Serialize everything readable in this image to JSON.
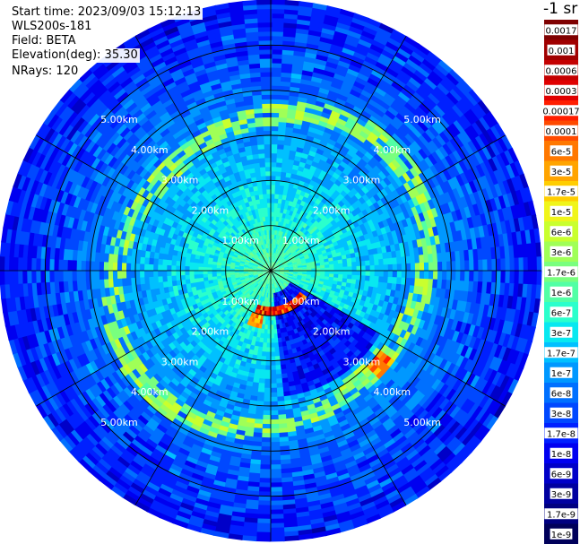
{
  "header": {
    "start_time": "Start time: 2023/09/03 15:12:13",
    "instrument": "WLS200s-181",
    "field": "Field: BETA",
    "elevation": "Elevation(deg): 35.30",
    "nrays": "NRays: 120"
  },
  "colorbar": {
    "unit_label": "-1 sr",
    "ticks": [
      "0.0017",
      "0.001",
      "0.0006",
      "0.0003",
      "0.00017",
      "0.0001",
      "6e-5",
      "3e-5",
      "1.7e-5",
      "1e-5",
      "6e-6",
      "3e-6",
      "1.7e-6",
      "1e-6",
      "6e-7",
      "3e-7",
      "1.7e-7",
      "1e-7",
      "6e-8",
      "3e-8",
      "1.7e-8",
      "1e-8",
      "6e-9",
      "3e-9",
      "1.7e-9",
      "1e-9"
    ],
    "colors": [
      "#7f0000",
      "#a00000",
      "#c40000",
      "#e00000",
      "#ff1e00",
      "#ff4a00",
      "#ff7800",
      "#ffa400",
      "#ffcd00",
      "#f0f51a",
      "#c9ff2e",
      "#a0ff57",
      "#79ff7e",
      "#52ffa5",
      "#2bffcc",
      "#08e8f0",
      "#00c0ff",
      "#0098ff",
      "#0070ff",
      "#0048ff",
      "#0020ff",
      "#0000f0",
      "#0000c8",
      "#0000a0",
      "#000080",
      "#00005a"
    ]
  },
  "chart_data": {
    "type": "heatmap",
    "projection": "polar (PPI scan)",
    "field": "BETA",
    "elevation_deg": 35.3,
    "n_rays": 120,
    "azimuth_spokes_deg": [
      0,
      30,
      60,
      90,
      120,
      150,
      180,
      210,
      240,
      270,
      300,
      330
    ],
    "range_rings_km": [
      1.0,
      2.0,
      3.0,
      4.0,
      5.0
    ],
    "range_labels": [
      "1.00km",
      "2.00km",
      "3.00km",
      "4.00km",
      "5.00km"
    ],
    "max_range_km": 6.0,
    "colorscale": "jet, log10",
    "value_range": [
      1e-09,
      0.0017
    ],
    "features": [
      {
        "description": "enhanced backscatter arc",
        "range_km": [
          3.0,
          3.9
        ],
        "level": "1.7e-6"
      },
      {
        "description": "near-field high return",
        "range_km": [
          0.3,
          1.1
        ],
        "azimuth_deg": [
          120,
          200
        ],
        "level": "0.0003"
      },
      {
        "description": "low-signal sector",
        "range_km": [
          0.5,
          2.8
        ],
        "azimuth_deg": [
          120,
          175
        ],
        "level": "3e-8"
      }
    ]
  }
}
